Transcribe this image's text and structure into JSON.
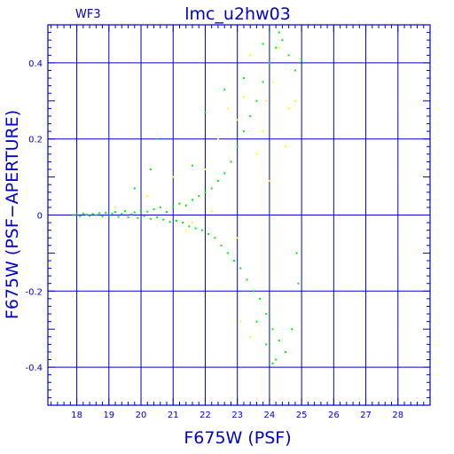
{
  "chart_data": {
    "type": "scatter",
    "panel_label": "WF3",
    "title": "lmc_u2hw03",
    "xlabel": "F675W (PSF)",
    "ylabel": "F675W (PSF−APERTURE)",
    "xlim": [
      17.1,
      29
    ],
    "ylim": [
      -0.5,
      0.5
    ],
    "x_ticks": [
      18,
      19,
      20,
      21,
      22,
      23,
      24,
      25,
      26,
      27,
      28
    ],
    "y_ticks": [
      -0.4,
      -0.2,
      0,
      0.2,
      0.4
    ],
    "y_tick_labels": [
      "-0.4",
      "-0.2",
      "0",
      "0.2",
      "0.4"
    ],
    "grid": true,
    "colors": {
      "axis": "#0000cc",
      "text": "#0000cc"
    },
    "series": [
      {
        "color": "#00ee00",
        "points": [
          [
            17.9,
            0.0
          ],
          [
            18.0,
            0.002
          ],
          [
            18.1,
            -0.003
          ],
          [
            18.2,
            0.004
          ],
          [
            18.3,
            0.001
          ],
          [
            18.4,
            -0.002
          ],
          [
            18.5,
            0.003
          ],
          [
            18.6,
            0.0
          ],
          [
            18.7,
            0.005
          ],
          [
            18.8,
            -0.004
          ],
          [
            18.9,
            0.006
          ],
          [
            19.0,
            -0.002
          ],
          [
            19.1,
            0.004
          ],
          [
            19.2,
            0.008
          ],
          [
            19.3,
            -0.005
          ],
          [
            19.4,
            0.003
          ],
          [
            19.5,
            0.01
          ],
          [
            19.6,
            -0.006
          ],
          [
            19.7,
            0.002
          ],
          [
            19.8,
            0.007
          ],
          [
            19.9,
            -0.008
          ],
          [
            20.0,
            0.012
          ],
          [
            20.1,
            -0.003
          ],
          [
            20.2,
            0.009
          ],
          [
            20.3,
            -0.01
          ],
          [
            20.4,
            0.015
          ],
          [
            20.5,
            -0.006
          ],
          [
            20.6,
            0.02
          ],
          [
            20.7,
            -0.012
          ],
          [
            20.8,
            0.008
          ],
          [
            20.9,
            -0.018
          ],
          [
            21.0,
            0.022
          ],
          [
            21.1,
            -0.015
          ],
          [
            21.2,
            0.03
          ],
          [
            21.3,
            -0.02
          ],
          [
            21.4,
            0.025
          ],
          [
            21.5,
            -0.03
          ],
          [
            21.6,
            0.04
          ],
          [
            21.7,
            -0.035
          ],
          [
            21.8,
            0.05
          ],
          [
            21.9,
            -0.04
          ],
          [
            22.0,
            0.06
          ],
          [
            22.1,
            -0.05
          ],
          [
            22.2,
            0.07
          ],
          [
            22.3,
            -0.06
          ],
          [
            22.4,
            0.09
          ],
          [
            22.5,
            -0.08
          ],
          [
            22.6,
            0.11
          ],
          [
            22.7,
            -0.1
          ],
          [
            22.8,
            0.14
          ],
          [
            22.9,
            -0.12
          ],
          [
            23.0,
            0.18
          ],
          [
            23.1,
            -0.14
          ],
          [
            23.2,
            0.22
          ],
          [
            23.3,
            -0.17
          ],
          [
            23.4,
            0.26
          ],
          [
            23.5,
            -0.2
          ],
          [
            23.6,
            0.3
          ],
          [
            23.7,
            -0.22
          ],
          [
            23.8,
            0.35
          ],
          [
            23.9,
            -0.26
          ],
          [
            24.0,
            0.4
          ],
          [
            24.1,
            -0.3
          ],
          [
            24.2,
            0.44
          ],
          [
            24.3,
            -0.33
          ],
          [
            24.4,
            0.46
          ],
          [
            24.5,
            -0.36
          ],
          [
            24.6,
            0.42
          ],
          [
            24.7,
            -0.3
          ],
          [
            24.8,
            0.38
          ],
          [
            24.9,
            -0.18
          ],
          [
            25.0,
            0.41
          ],
          [
            24.95,
            0.4
          ],
          [
            24.85,
            -0.1
          ],
          [
            19.8,
            0.07
          ],
          [
            20.3,
            0.12
          ],
          [
            20.5,
            0.2
          ],
          [
            21.6,
            0.13
          ],
          [
            22.0,
            0.27
          ],
          [
            22.6,
            0.33
          ],
          [
            23.2,
            0.36
          ],
          [
            23.8,
            0.45
          ],
          [
            24.3,
            0.48
          ],
          [
            24.1,
            -0.39
          ],
          [
            24.2,
            -0.38
          ],
          [
            23.9,
            -0.34
          ],
          [
            23.6,
            -0.28
          ]
        ]
      },
      {
        "color": "#ffff00",
        "points": [
          [
            19.2,
            0.02
          ],
          [
            20.2,
            0.05
          ],
          [
            21.0,
            0.1
          ],
          [
            21.6,
            -0.02
          ],
          [
            22.0,
            0.12
          ],
          [
            22.4,
            0.2
          ],
          [
            22.7,
            0.28
          ],
          [
            23.0,
            0.25
          ],
          [
            23.2,
            0.31
          ],
          [
            23.4,
            0.42
          ],
          [
            23.6,
            0.16
          ],
          [
            23.8,
            0.22
          ],
          [
            23.9,
            0.3
          ],
          [
            24.1,
            0.35
          ],
          [
            24.3,
            0.44
          ],
          [
            24.5,
            0.18
          ],
          [
            24.6,
            0.28
          ],
          [
            24.8,
            0.3
          ],
          [
            23.1,
            -0.28
          ],
          [
            23.4,
            -0.32
          ],
          [
            23.0,
            -0.06
          ],
          [
            22.2,
            0.01
          ],
          [
            21.4,
            -0.04
          ],
          [
            24.0,
            0.09
          ]
        ]
      }
    ]
  }
}
